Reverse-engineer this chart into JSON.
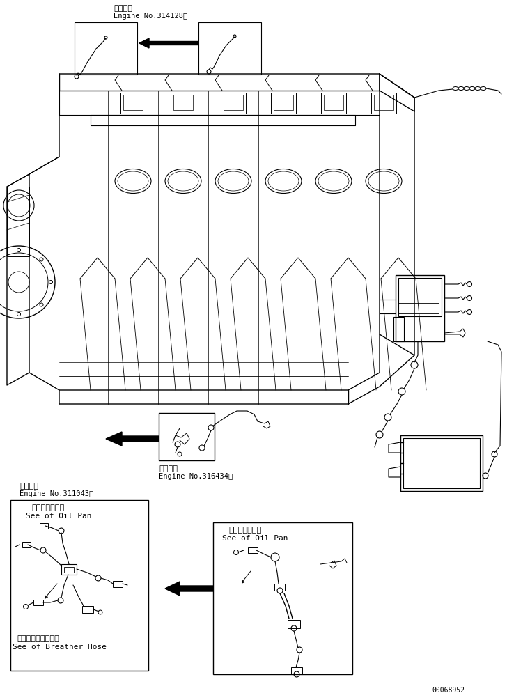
{
  "bg_color": "#ffffff",
  "line_color": "#000000",
  "text_color": "#000000",
  "part_number": "00068952",
  "title_text1": "適用号機",
  "title_text2": "Engine No.314128～",
  "title2_text1": "適用号機",
  "title2_text2": "Engine No.316434～",
  "title3_text1": "適用号機",
  "title3_text2": "Engine No.311043～",
  "box1_label1": "オイルパン参照",
  "box1_label2": "See of Oil Pan",
  "box1_label3": "ブリーザホース参照",
  "box1_label4": "See of Breather Hose",
  "box2_label1": "オイルパン参照",
  "box2_label2": "See of Oil Pan",
  "fig_width": 7.61,
  "fig_height": 10.05,
  "dpi": 100
}
